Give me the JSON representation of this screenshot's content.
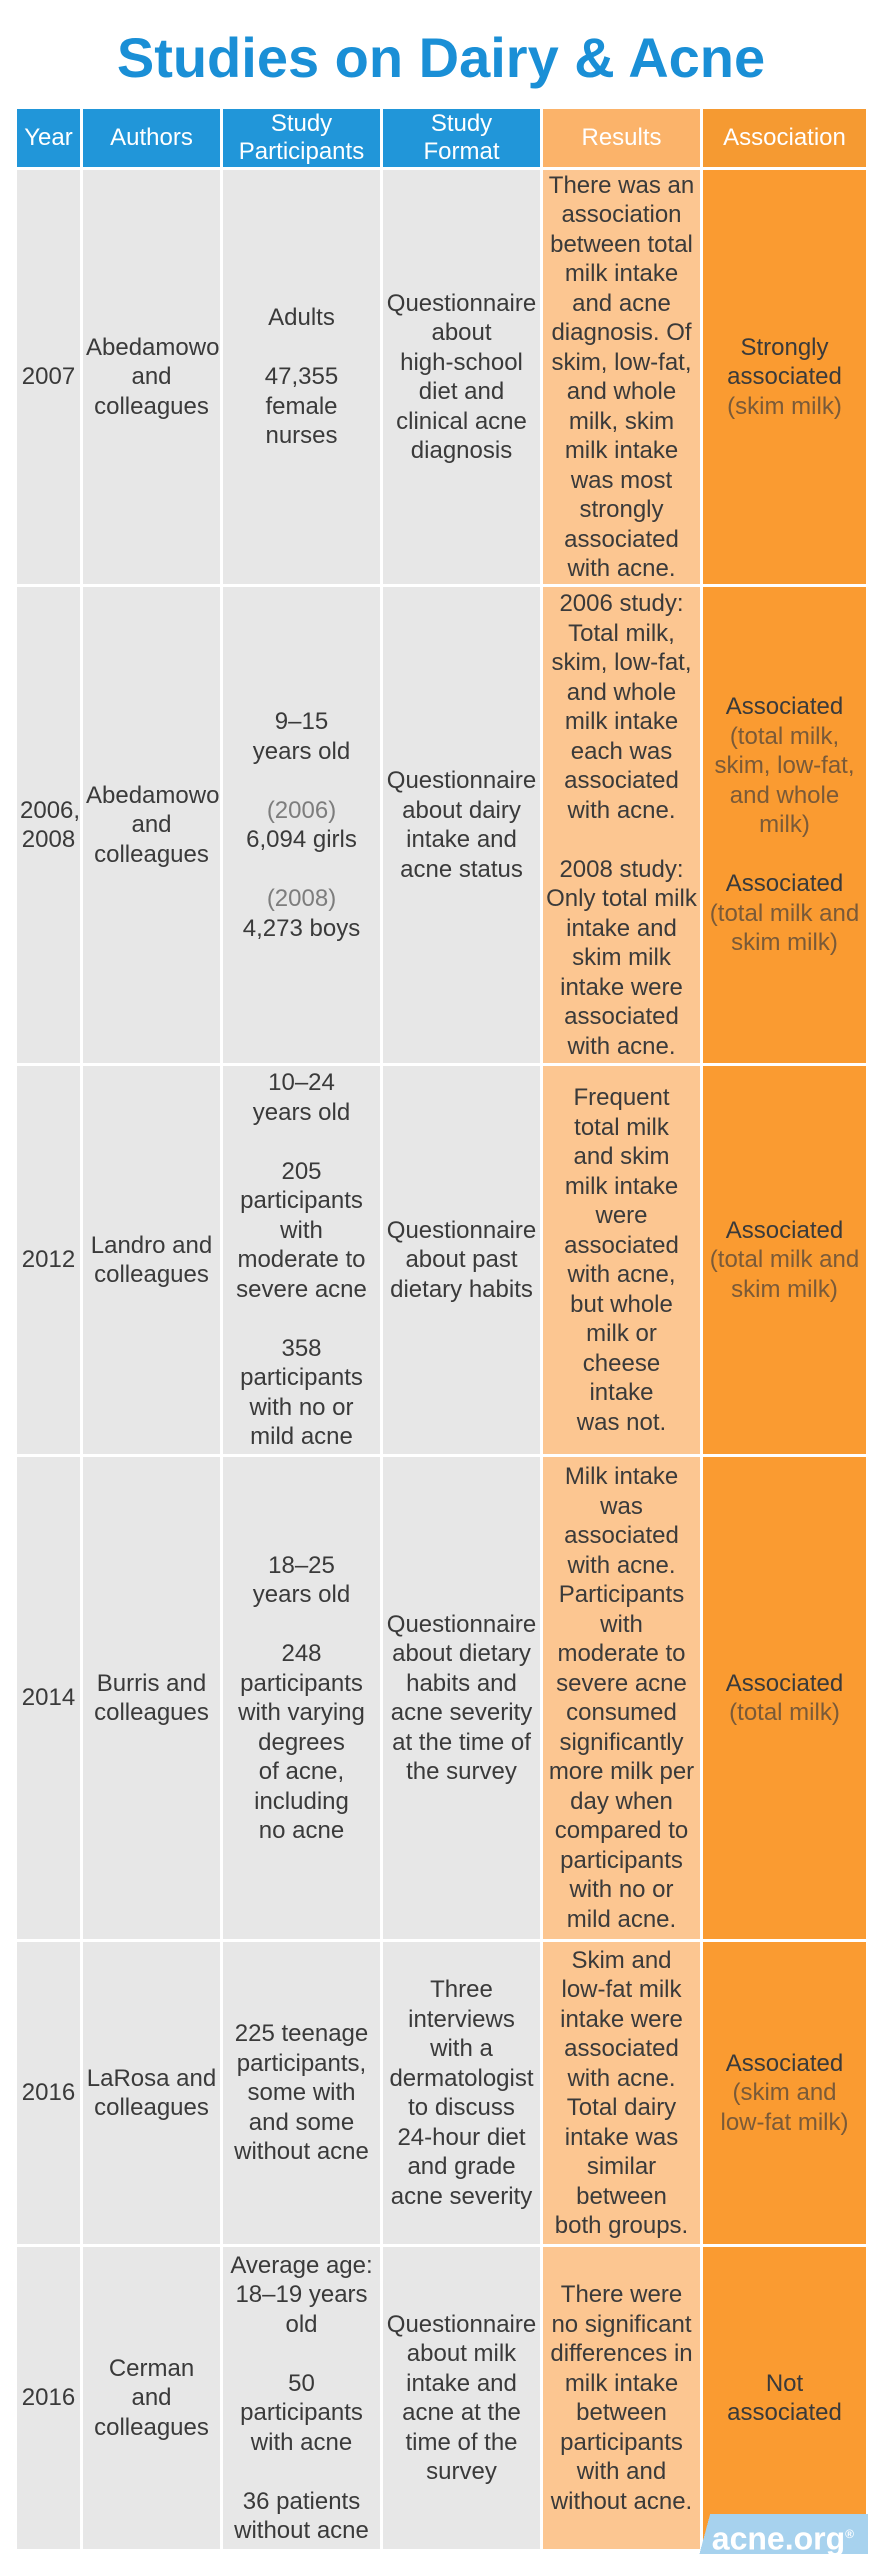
{
  "title": "Studies on Dairy & Acne",
  "headers": {
    "year": "Year",
    "authors": "Authors",
    "participants": [
      "Study",
      "Participants"
    ],
    "format": [
      "Study",
      "Format"
    ],
    "results": "Results",
    "association": "Association"
  },
  "rows": [
    {
      "year": "2007",
      "authors": [
        "Abedamowo",
        "and",
        "colleagues"
      ],
      "participants": [
        {
          "lines": [
            "Adults"
          ]
        },
        {
          "lines": [
            "47,355",
            "female",
            "nurses"
          ]
        }
      ],
      "format": [
        "Questionnaire",
        "about",
        "high-school",
        "diet and",
        "clinical acne",
        "diagnosis"
      ],
      "results": [
        {
          "lines": [
            "There was an",
            "association",
            "between total",
            "milk intake",
            "and acne",
            "diagnosis. Of",
            "skim, low-fat,",
            "and whole",
            "milk, skim",
            "milk intake",
            "was most",
            "strongly",
            "associated",
            "with acne."
          ]
        }
      ],
      "association": [
        {
          "main": [
            "Strongly",
            "associated"
          ],
          "sub": [
            "(skim milk)"
          ]
        }
      ]
    },
    {
      "year": [
        "2006,",
        "2008"
      ],
      "authors": [
        "Abedamowo",
        "and",
        "colleagues"
      ],
      "participants": [
        {
          "lines": [
            "9–15",
            "years old"
          ]
        },
        {
          "muted": "(2006)",
          "lines": [
            "6,094 girls"
          ]
        },
        {
          "muted": "(2008)",
          "lines": [
            "4,273 boys"
          ]
        }
      ],
      "format": [
        "Questionnaire",
        "about dairy",
        "intake and",
        "acne status"
      ],
      "results": [
        {
          "lines": [
            "2006 study:",
            "Total milk,",
            "skim, low-fat,",
            "and whole",
            "milk intake",
            "each was",
            "associated",
            "with acne."
          ]
        },
        {
          "lines": [
            "2008 study:",
            "Only total milk",
            "intake and",
            "skim milk",
            "intake were",
            "associated",
            "with acne."
          ]
        }
      ],
      "association": [
        {
          "main": [
            "Associated"
          ],
          "sub": [
            "(total milk,",
            "skim, low-fat,",
            "and whole",
            "milk)"
          ]
        },
        {
          "main": [
            "Associated"
          ],
          "sub": [
            "(total milk and",
            "skim milk)"
          ]
        }
      ]
    },
    {
      "year": "2012",
      "authors": [
        "Landro and",
        "colleagues"
      ],
      "participants": [
        {
          "lines": [
            "10–24",
            "years old"
          ]
        },
        {
          "lines": [
            "205",
            "participants",
            "with",
            "moderate to",
            "severe acne"
          ]
        },
        {
          "lines": [
            "358",
            "participants",
            "with no or",
            "mild acne"
          ]
        }
      ],
      "format": [
        "Questionnaire",
        "about past",
        "dietary habits"
      ],
      "results": [
        {
          "lines": [
            "Frequent",
            "total milk",
            "and skim",
            "milk intake",
            "were",
            "associated",
            "with acne,",
            "but whole",
            "milk or",
            "cheese",
            "intake",
            "was not."
          ]
        }
      ],
      "association": [
        {
          "main": [
            "Associated"
          ],
          "sub": [
            "(total milk and",
            "skim milk)"
          ]
        }
      ]
    },
    {
      "year": "2014",
      "authors": [
        "Burris and",
        "colleagues"
      ],
      "participants": [
        {
          "lines": [
            "18–25",
            "years old"
          ]
        },
        {
          "lines": [
            "248",
            "participants",
            "with varying",
            "degrees",
            "of acne,",
            "including",
            "no acne"
          ]
        }
      ],
      "format": [
        "Questionnaire",
        "about dietary",
        "habits and",
        "acne severity",
        "at the time of",
        "the survey"
      ],
      "results": [
        {
          "lines": [
            "Milk intake",
            "was",
            "associated",
            "with acne.",
            "Participants",
            "with",
            "moderate to",
            "severe acne",
            "consumed",
            "significantly",
            "more milk per",
            "day when",
            "compared to",
            "participants",
            "with no or",
            "mild acne."
          ]
        }
      ],
      "association": [
        {
          "main": [
            "Associated"
          ],
          "sub": [
            "(total milk)"
          ]
        }
      ]
    },
    {
      "year": "2016",
      "authors": [
        "LaRosa and",
        "colleagues"
      ],
      "participants": [
        {
          "lines": [
            "225 teenage",
            "participants,",
            "some with",
            "and some",
            "without acne"
          ]
        }
      ],
      "format": [
        "Three",
        "interviews",
        "with a",
        "dermatologist",
        "to discuss",
        "24-hour diet",
        "and grade",
        "acne severity"
      ],
      "results": [
        {
          "lines": [
            "Skim and",
            "low-fat milk",
            "intake were",
            "associated",
            "with acne.",
            "Total dairy",
            "intake was",
            "similar",
            "between",
            "both groups."
          ]
        }
      ],
      "association": [
        {
          "main": [
            "Associated"
          ],
          "sub": [
            "(skim and",
            "low-fat milk)"
          ]
        }
      ]
    },
    {
      "year": "2016",
      "authors": [
        "Cerman and",
        "colleagues"
      ],
      "participants": [
        {
          "lines": [
            "Average age:",
            "18–19 years",
            "old"
          ]
        },
        {
          "lines": [
            "50",
            "participants",
            "with acne"
          ]
        },
        {
          "lines": [
            "36 patients",
            "without acne"
          ]
        }
      ],
      "format": [
        "Questionnaire",
        "about milk",
        "intake and",
        "acne at the",
        "time of the",
        "survey"
      ],
      "results": [
        {
          "lines": [
            "There were",
            "no significant",
            "differences in",
            "milk intake",
            "between",
            "participants",
            "with and",
            "without acne."
          ]
        }
      ],
      "association": [
        {
          "main": [
            "Not",
            "associated"
          ],
          "sub": []
        }
      ]
    }
  ],
  "logo": {
    "text": "acne.org",
    "mark": "®"
  },
  "colors": {
    "title": "#1a8fd6",
    "header_blue": "#2196d9",
    "header_results": "#fbb36a",
    "header_association": "#f59a32",
    "cell_gray": "#e7e7e7",
    "cell_results": "#fcc691",
    "cell_association": "#fa9b31"
  }
}
